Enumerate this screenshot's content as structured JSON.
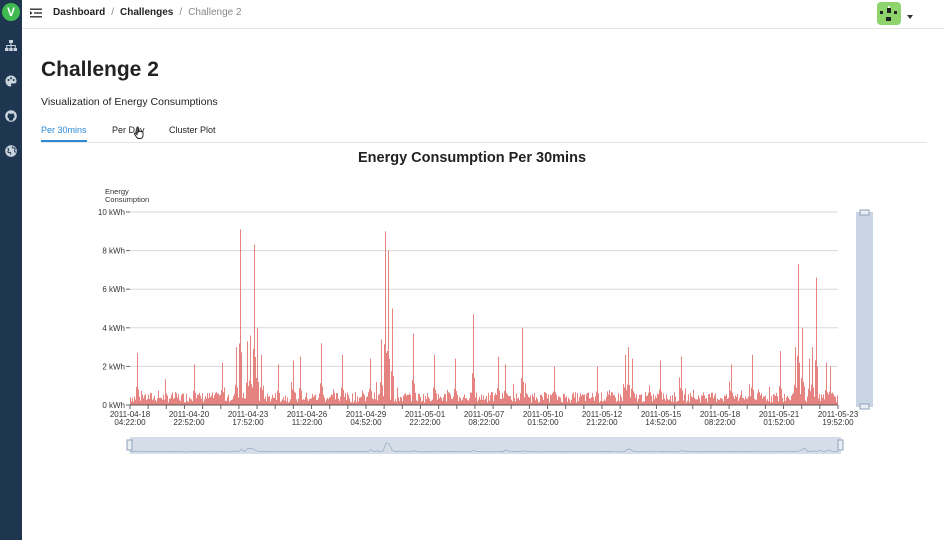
{
  "sidebar": {
    "logo_letter": "V",
    "icons": [
      "sitemap-icon",
      "palette-icon",
      "github-icon",
      "globe-icon"
    ]
  },
  "header": {
    "breadcrumb": [
      "Dashboard",
      "Challenges",
      "Challenge 2"
    ],
    "breadcrumb_separator": "/"
  },
  "page": {
    "title": "Challenge 2",
    "subtitle": "Visualization of Energy Consumptions"
  },
  "tabs": [
    {
      "label": "Per 30mins",
      "active": true
    },
    {
      "label": "Per Day",
      "active": false
    },
    {
      "label": "Cluster Plot",
      "active": false
    }
  ],
  "colors": {
    "accent": "#2c8ad8",
    "sidebar": "#1e3650",
    "series": "#d9534f",
    "zoom": "#9fb3cc"
  },
  "chart_data": {
    "type": "bar",
    "title": "Energy Consumption Per 30mins",
    "ylabel_lines": [
      "Energy",
      "Consumption"
    ],
    "ylim": [
      0,
      10
    ],
    "yticks": [
      "0 kWh",
      "2 kWh",
      "4 kWh",
      "6 kWh",
      "8 kWh",
      "10 kWh"
    ],
    "xticks": [
      [
        "2011-04-18",
        "04:22:00"
      ],
      [
        "2011-04-20",
        "22:52:00"
      ],
      [
        "2011-04-23",
        "17:52:00"
      ],
      [
        "2011-04-26",
        "11:22:00"
      ],
      [
        "2011-04-29",
        "04:52:00"
      ],
      [
        "2011-05-01",
        "22:22:00"
      ],
      [
        "2011-05-07",
        "08:22:00"
      ],
      [
        "2011-05-10",
        "01:52:00"
      ],
      [
        "2011-05-12",
        "21:22:00"
      ],
      [
        "2011-05-15",
        "14:52:00"
      ],
      [
        "2011-05-18",
        "08:22:00"
      ],
      [
        "2011-05-21",
        "01:52:00"
      ],
      [
        "2011-05-23",
        "19:52:00"
      ]
    ],
    "x_range_fraction": [
      0,
      1
    ],
    "baseline_kwh": 0.5,
    "peaks": [
      {
        "x": 0.01,
        "value": 2.7
      },
      {
        "x": 0.09,
        "value": 2.1
      },
      {
        "x": 0.13,
        "value": 2.2
      },
      {
        "x": 0.15,
        "value": 3.0
      },
      {
        "x": 0.155,
        "value": 9.1
      },
      {
        "x": 0.165,
        "value": 3.3
      },
      {
        "x": 0.17,
        "value": 3.6
      },
      {
        "x": 0.175,
        "value": 8.3
      },
      {
        "x": 0.18,
        "value": 4.0
      },
      {
        "x": 0.185,
        "value": 2.6
      },
      {
        "x": 0.21,
        "value": 2.1
      },
      {
        "x": 0.23,
        "value": 2.3
      },
      {
        "x": 0.24,
        "value": 2.5
      },
      {
        "x": 0.27,
        "value": 3.2
      },
      {
        "x": 0.3,
        "value": 2.6
      },
      {
        "x": 0.34,
        "value": 2.4
      },
      {
        "x": 0.355,
        "value": 3.4
      },
      {
        "x": 0.36,
        "value": 9.0
      },
      {
        "x": 0.365,
        "value": 8.0
      },
      {
        "x": 0.37,
        "value": 5.0
      },
      {
        "x": 0.4,
        "value": 3.7
      },
      {
        "x": 0.43,
        "value": 2.6
      },
      {
        "x": 0.46,
        "value": 2.4
      },
      {
        "x": 0.485,
        "value": 4.7
      },
      {
        "x": 0.52,
        "value": 2.5
      },
      {
        "x": 0.53,
        "value": 2.1
      },
      {
        "x": 0.555,
        "value": 4.0
      },
      {
        "x": 0.6,
        "value": 2.0
      },
      {
        "x": 0.66,
        "value": 2.0
      },
      {
        "x": 0.7,
        "value": 2.6
      },
      {
        "x": 0.705,
        "value": 3.0
      },
      {
        "x": 0.71,
        "value": 2.4
      },
      {
        "x": 0.75,
        "value": 2.3
      },
      {
        "x": 0.78,
        "value": 2.5
      },
      {
        "x": 0.85,
        "value": 2.1
      },
      {
        "x": 0.88,
        "value": 2.6
      },
      {
        "x": 0.92,
        "value": 2.8
      },
      {
        "x": 0.94,
        "value": 3.0
      },
      {
        "x": 0.945,
        "value": 7.3
      },
      {
        "x": 0.95,
        "value": 4.0
      },
      {
        "x": 0.96,
        "value": 2.4
      },
      {
        "x": 0.965,
        "value": 3.0
      },
      {
        "x": 0.97,
        "value": 6.6
      },
      {
        "x": 0.985,
        "value": 2.2
      },
      {
        "x": 0.99,
        "value": 2.0
      }
    ]
  }
}
